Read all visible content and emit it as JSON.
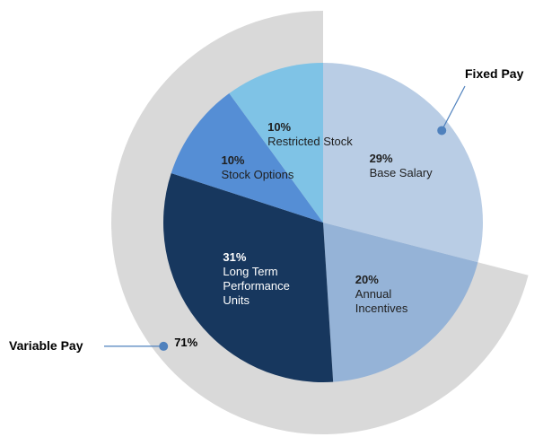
{
  "chart_data": {
    "type": "pie",
    "categories": [
      "Base Salary",
      "Annual Incentives",
      "Long Term Performance Units",
      "Stock Options",
      "Restricted Stock"
    ],
    "values": [
      29,
      20,
      31,
      10,
      10
    ],
    "value_labels": [
      "29%",
      "20%",
      "31%",
      "10%",
      "10%"
    ],
    "colors": [
      "#b9cde5",
      "#95b3d7",
      "#17375e",
      "#558ed5",
      "#7fc3e6"
    ],
    "outer": [
      {
        "name": "Fixed Pay",
        "value": 29
      },
      {
        "name": "Variable Pay",
        "value": 71,
        "label": "71%",
        "color": "#d9d9d9"
      }
    ]
  }
}
